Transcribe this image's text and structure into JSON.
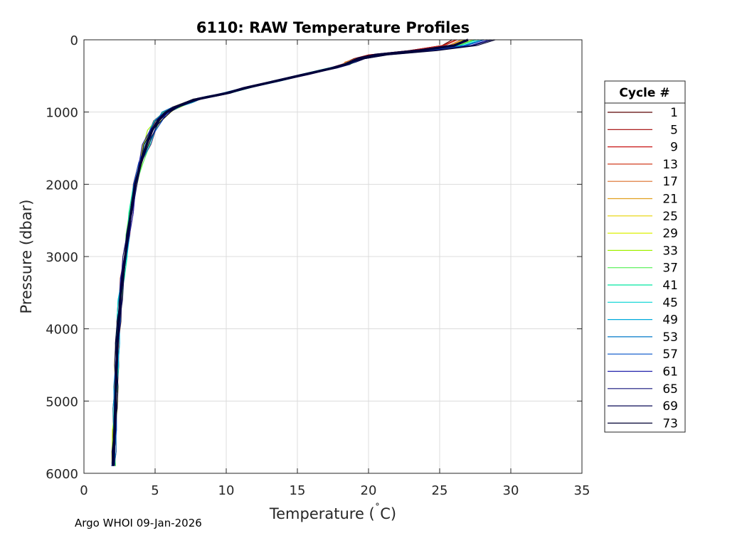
{
  "chart_data": {
    "type": "line",
    "title": "6110: RAW Temperature Profiles",
    "xlabel": "Temperature (˚C)",
    "xlabel_main": "Temperature (",
    "xlabel_degree": "˚",
    "xlabel_unit": "C)",
    "ylabel": "Pressure (dbar)",
    "xlim": [
      0,
      35
    ],
    "ylim": [
      0,
      6000
    ],
    "y_reversed": true,
    "grid": true,
    "x_ticks": [
      0,
      5,
      10,
      15,
      20,
      25,
      30,
      35
    ],
    "y_ticks": [
      0,
      1000,
      2000,
      3000,
      4000,
      5000,
      6000
    ],
    "legend": {
      "title": "Cycle #",
      "placement": "right",
      "entries": [
        {
          "label": "1",
          "color": "#5a0000"
        },
        {
          "label": "5",
          "color": "#a00000"
        },
        {
          "label": "9",
          "color": "#c81414"
        },
        {
          "label": "13",
          "color": "#d23c1e"
        },
        {
          "label": "17",
          "color": "#dc6e28"
        },
        {
          "label": "21",
          "color": "#e1a01e"
        },
        {
          "label": "25",
          "color": "#e6d200"
        },
        {
          "label": "29",
          "color": "#dcf000"
        },
        {
          "label": "33",
          "color": "#a0f000"
        },
        {
          "label": "37",
          "color": "#50f050"
        },
        {
          "label": "41",
          "color": "#00e6a0"
        },
        {
          "label": "45",
          "color": "#00d2d2"
        },
        {
          "label": "49",
          "color": "#00aadc"
        },
        {
          "label": "53",
          "color": "#0078c8"
        },
        {
          "label": "57",
          "color": "#0050c8"
        },
        {
          "label": "61",
          "color": "#1e1eaa"
        },
        {
          "label": "65",
          "color": "#14147d"
        },
        {
          "label": "69",
          "color": "#0a0a55"
        },
        {
          "label": "73",
          "color": "#000032"
        }
      ]
    },
    "reference_profile": {
      "temperature": [
        27.0,
        26.0,
        23.5,
        20.5,
        19.3,
        18.7,
        18.4,
        17.5,
        15.5,
        13.5,
        11.5,
        10.0,
        9.0,
        8.0,
        7.3,
        6.5,
        5.8,
        5.2,
        4.8,
        4.4,
        4.0,
        3.6,
        3.3,
        3.1,
        2.9,
        2.7,
        2.55,
        2.45,
        2.35,
        2.3,
        2.25,
        2.2,
        2.15,
        2.1,
        2.08
      ],
      "pressure": [
        0,
        80,
        150,
        210,
        260,
        310,
        340,
        390,
        480,
        570,
        660,
        740,
        780,
        820,
        870,
        930,
        1000,
        1120,
        1250,
        1450,
        1700,
        2000,
        2400,
        2700,
        3000,
        3300,
        3600,
        3900,
        4200,
        4500,
        4800,
        5100,
        5400,
        5700,
        5900
      ]
    },
    "footer": "Argo WHOI 09-Jan-2026"
  }
}
